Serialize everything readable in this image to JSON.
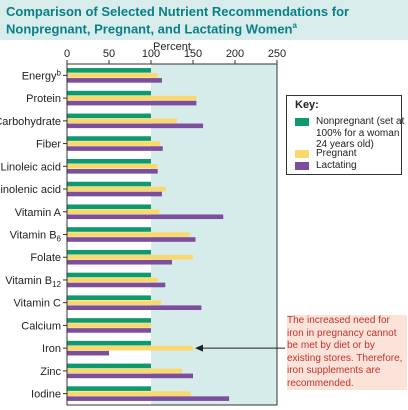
{
  "title": {
    "line1": "Comparison of Selected Nutrient Recommendations for",
    "line2": "Nonpregnant, Pregnant, and Lactating Women",
    "line2_mark": "a"
  },
  "colors": {
    "nonpregnant": "#0e9a6e",
    "pregnant": "#fbd86a",
    "lactating": "#7d4e9b",
    "plot_bg": "#d6eceb",
    "plot_bg_left": "#ffffff",
    "title": "#0a7f86",
    "note_text": "#c1342d",
    "note_bg": "#fce3d9"
  },
  "key": {
    "title": "Key:",
    "items": [
      {
        "label": "Nonpregnant (set at 100% for a woman 24 years old)",
        "color": "#0e9a6e"
      },
      {
        "label": "Pregnant",
        "color": "#fbd86a"
      },
      {
        "label": "Lactating",
        "color": "#7d4e9b"
      }
    ]
  },
  "note": "The increased need for iron in pregnancy cannot be met by diet or by existing stores. Therefore, iron supplements are recommended.",
  "chart_data": {
    "type": "bar",
    "orientation": "horizontal",
    "xlabel": "Percent",
    "xlim": [
      0,
      250
    ],
    "xticks": [
      0,
      50,
      100,
      150,
      200,
      250
    ],
    "categories": [
      {
        "label": "Energy",
        "mark": "b"
      },
      {
        "label": "Protein"
      },
      {
        "label": "Carbohydrate"
      },
      {
        "label": "Fiber"
      },
      {
        "label": "Linoleic acid"
      },
      {
        "label": "Linolenic acid"
      },
      {
        "label": "Vitamin A"
      },
      {
        "label": "Vitamin B",
        "sub": "6"
      },
      {
        "label": "Folate"
      },
      {
        "label": "Vitamin B",
        "sub": "12"
      },
      {
        "label": "Vitamin C"
      },
      {
        "label": "Calcium"
      },
      {
        "label": "Iron"
      },
      {
        "label": "Zinc"
      },
      {
        "label": "Iodine"
      }
    ],
    "series": [
      {
        "name": "Nonpregnant",
        "values": [
          100,
          100,
          100,
          100,
          100,
          100,
          100,
          100,
          100,
          100,
          100,
          100,
          100,
          100,
          100
        ]
      },
      {
        "name": "Pregnant",
        "values": [
          108,
          154,
          131,
          111,
          108,
          118,
          110,
          146,
          150,
          108,
          112,
          100,
          150,
          137,
          147
        ]
      },
      {
        "name": "Lactating",
        "values": [
          113,
          154,
          162,
          114,
          108,
          113,
          186,
          153,
          125,
          117,
          160,
          100,
          50,
          150,
          193
        ]
      }
    ],
    "legend_position": "right",
    "grid": false
  }
}
